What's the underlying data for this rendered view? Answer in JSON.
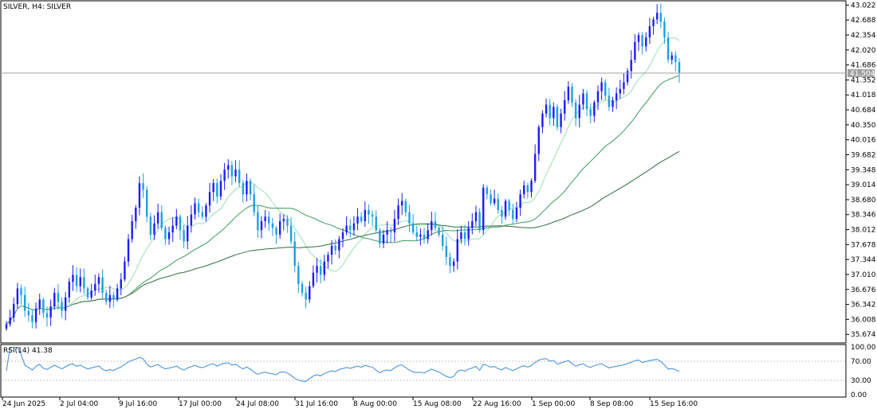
{
  "chart_data": {
    "type": "candlestick",
    "symbol_title": "SILVER, H4:  SILVER",
    "rsi_title": "RSI(14) 41.38",
    "current_price": 41.504,
    "current_price_label": "41.504",
    "price_axis_labels": [
      "43.022",
      "42.688",
      "42.354",
      "42.020",
      "41.686",
      "41.352",
      "41.018",
      "40.684",
      "40.350",
      "40.016",
      "39.682",
      "39.348",
      "39.014",
      "38.680",
      "38.346",
      "38.012",
      "37.678",
      "37.344",
      "37.010",
      "36.676",
      "36.342",
      "36.008",
      "35.674"
    ],
    "ylim": [
      35.5,
      43.1
    ],
    "rsi_axis_labels": [
      "100.00",
      "70.00",
      "30.00",
      "0.00"
    ],
    "rsi_levels": [
      100,
      70,
      30,
      0
    ],
    "rsi_ylim": [
      0,
      100
    ],
    "x_labels": [
      "24 Jun 2025",
      "2 Jul 04:00",
      "9 Jul 16:00",
      "17 Jul 00:00",
      "24 Jul 08:00",
      "31 Jul 16:00",
      "8 Aug 00:00",
      "15 Aug 08:00",
      "22 Aug 16:00",
      "1 Sep 00:00",
      "8 Sep 08:00",
      "15 Sep 16:00"
    ],
    "closes": [
      35.9,
      36.05,
      36.35,
      36.7,
      36.55,
      36.2,
      36.1,
      35.95,
      36.25,
      36.45,
      36.15,
      36.05,
      36.3,
      36.6,
      36.4,
      36.2,
      36.5,
      36.85,
      37.0,
      36.75,
      36.95,
      36.7,
      36.5,
      36.65,
      36.8,
      36.95,
      36.6,
      36.4,
      36.55,
      36.45,
      36.7,
      36.9,
      37.3,
      37.8,
      38.2,
      38.5,
      39.05,
      38.9,
      38.3,
      37.9,
      38.15,
      38.4,
      38.05,
      37.8,
      37.95,
      38.1,
      38.3,
      38.0,
      37.75,
      38.1,
      38.35,
      38.6,
      38.4,
      38.3,
      38.55,
      38.85,
      39.05,
      38.75,
      39.1,
      39.35,
      39.45,
      39.2,
      39.35,
      39.05,
      38.8,
      39.1,
      38.8,
      38.4,
      38.0,
      38.2,
      38.3,
      38.15,
      38.05,
      37.9,
      38.2,
      38.25,
      38.1,
      37.75,
      37.2,
      36.8,
      36.6,
      36.45,
      36.75,
      37.05,
      37.2,
      37.0,
      37.3,
      37.45,
      37.65,
      37.55,
      37.8,
      37.95,
      38.1,
      38.0,
      38.15,
      38.3,
      38.2,
      38.45,
      38.35,
      38.3,
      38.0,
      37.7,
      37.9,
      38.0,
      37.95,
      38.25,
      38.55,
      38.65,
      38.4,
      38.15,
      37.95,
      37.85,
      37.9,
      37.8,
      38.0,
      38.2,
      38.05,
      37.9,
      37.65,
      37.4,
      37.2,
      37.3,
      37.8,
      37.95,
      37.8,
      38.05,
      38.2,
      38.4,
      38.0,
      38.95,
      38.8,
      38.6,
      38.7,
      38.45,
      38.3,
      38.65,
      38.45,
      38.25,
      38.5,
      38.8,
      39.0,
      38.85,
      39.1,
      39.7,
      40.3,
      40.6,
      40.8,
      40.5,
      40.75,
      40.3,
      40.6,
      40.9,
      41.2,
      40.85,
      40.5,
      40.8,
      41.05,
      40.7,
      40.55,
      40.85,
      41.1,
      41.3,
      41.0,
      40.75,
      40.9,
      41.05,
      41.15,
      41.3,
      41.55,
      41.8,
      42.2,
      42.35,
      42.1,
      42.3,
      42.55,
      42.7,
      42.85,
      42.65,
      42.3,
      41.8,
      41.9,
      41.75,
      41.504
    ],
    "series": [
      {
        "name": "MA fast",
        "color": "#9be0b4"
      },
      {
        "name": "MA medium",
        "color": "#3d9a5e"
      },
      {
        "name": "MA slow",
        "color": "#2f6e43"
      },
      {
        "name": "RSI(14)",
        "color": "#3b8be0"
      }
    ],
    "bull_color": "#1c1cff",
    "bear_color": "#1c9fe0",
    "grid": false
  }
}
